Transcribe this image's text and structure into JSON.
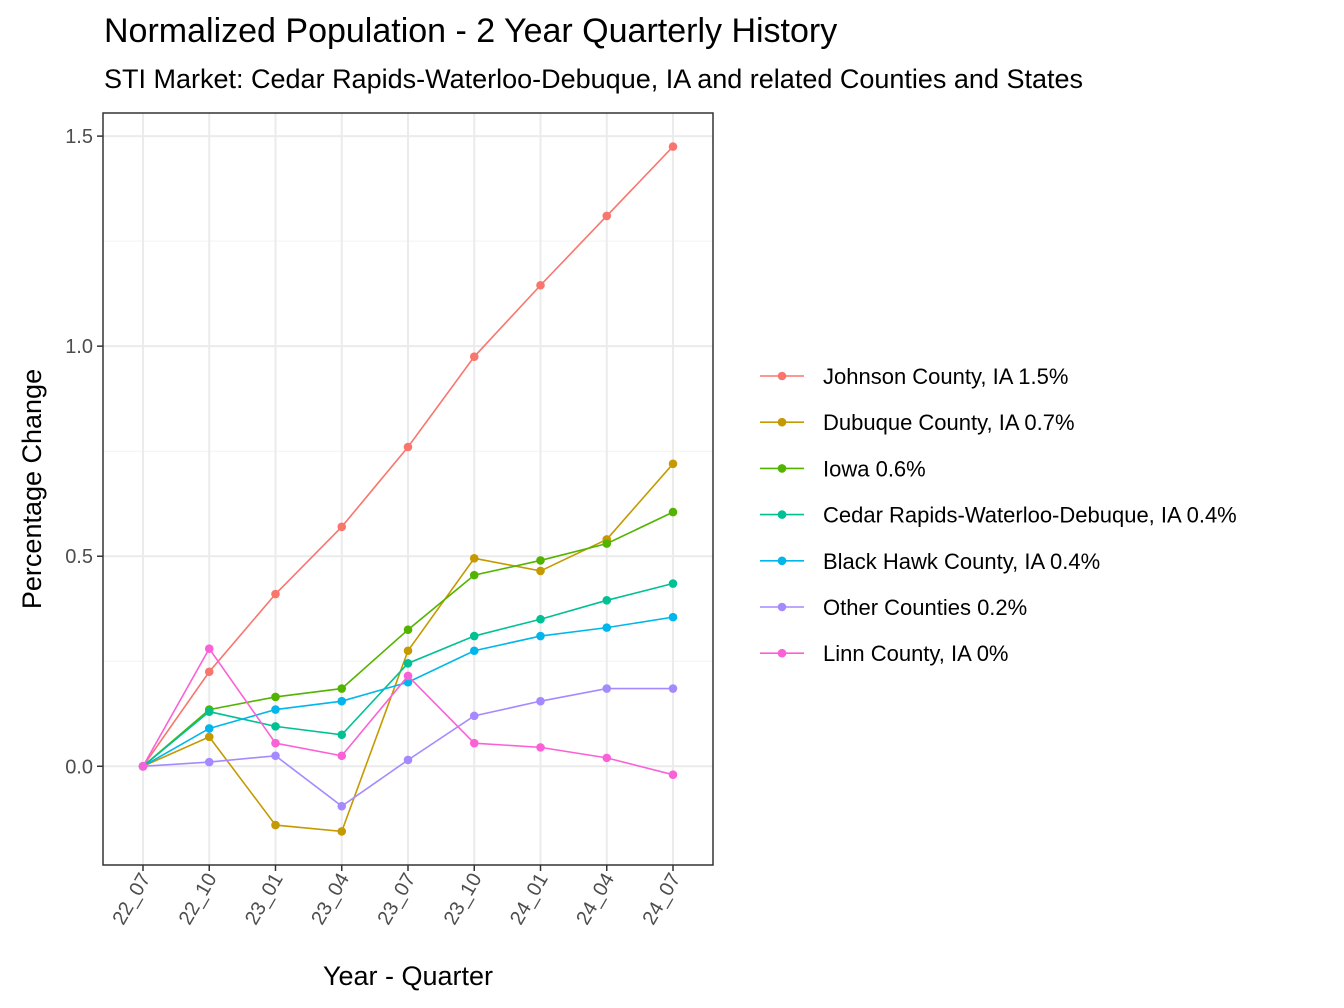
{
  "chart_data": {
    "type": "line",
    "title": "Normalized Population - 2 Year Quarterly History",
    "subtitle": "STI Market: Cedar Rapids-Waterloo-Debuque, IA and related Counties and States",
    "xlabel": "Year - Quarter",
    "ylabel": "Percentage Change",
    "categories": [
      "22_07",
      "22_10",
      "23_01",
      "23_04",
      "23_07",
      "23_10",
      "24_01",
      "24_04",
      "24_07"
    ],
    "ylim": [
      -0.235,
      1.555
    ],
    "yticks": [
      0.0,
      0.5,
      1.0,
      1.5
    ],
    "ytick_labels": [
      "0.0",
      "0.5",
      "1.0",
      "1.5"
    ],
    "grid": true,
    "legend_position": "right",
    "series": [
      {
        "name": "Johnson County, IA 1.5%",
        "color": "#F8766D",
        "values": [
          0,
          0.225,
          0.41,
          0.57,
          0.76,
          0.975,
          1.145,
          1.31,
          1.475
        ]
      },
      {
        "name": "Dubuque County, IA 0.7%",
        "color": "#C49A00",
        "values": [
          0,
          0.07,
          -0.14,
          -0.155,
          0.275,
          0.495,
          0.465,
          0.54,
          0.72
        ]
      },
      {
        "name": "Iowa 0.6%",
        "color": "#53B400",
        "values": [
          0,
          0.135,
          0.165,
          0.185,
          0.325,
          0.455,
          0.49,
          0.53,
          0.605
        ]
      },
      {
        "name": "Cedar Rapids-Waterloo-Debuque, IA 0.4%",
        "color": "#00C094",
        "values": [
          0,
          0.13,
          0.095,
          0.075,
          0.245,
          0.31,
          0.35,
          0.395,
          0.435
        ]
      },
      {
        "name": "Black Hawk County, IA 0.4%",
        "color": "#00B6EB",
        "values": [
          0,
          0.09,
          0.135,
          0.155,
          0.2,
          0.275,
          0.31,
          0.33,
          0.355
        ]
      },
      {
        "name": "Other Counties 0.2%",
        "color": "#A58AFF",
        "values": [
          0,
          0.01,
          0.025,
          -0.095,
          0.015,
          0.12,
          0.155,
          0.185,
          0.185
        ]
      },
      {
        "name": "Linn County, IA 0%",
        "color": "#FB61D7",
        "values": [
          0,
          0.28,
          0.055,
          0.025,
          0.215,
          0.055,
          0.045,
          0.02,
          -0.02
        ]
      }
    ]
  }
}
